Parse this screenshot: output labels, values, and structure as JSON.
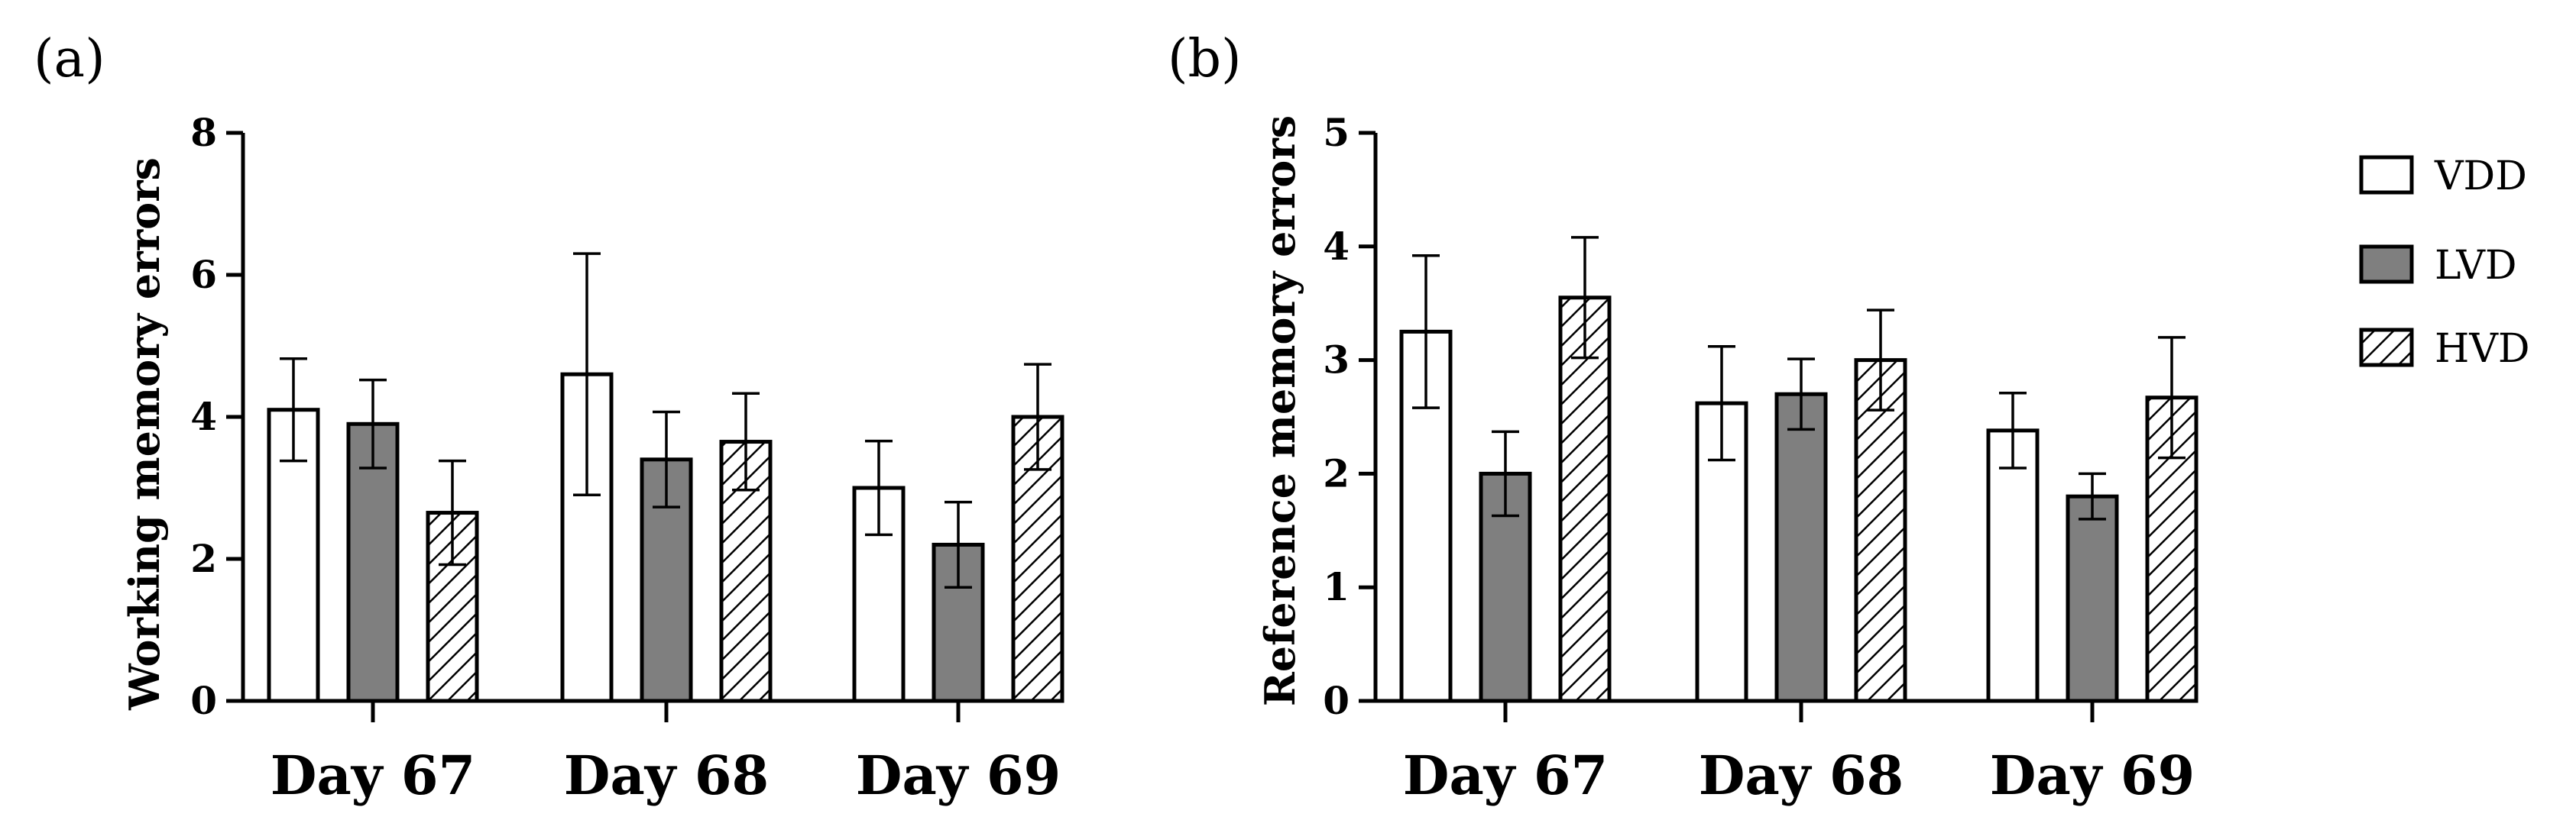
{
  "chart_data": [
    {
      "type": "bar",
      "panel_label": "(a)",
      "title": "",
      "xlabel": "",
      "ylabel": "Working memory errors",
      "ylim": [
        0,
        8
      ],
      "yticks": [
        "0",
        "2",
        "4",
        "6",
        "8"
      ],
      "categories": [
        "Day 67",
        "Day 68",
        "Day 69"
      ],
      "series": [
        {
          "name": "VDD",
          "values": [
            4.1,
            4.6,
            3.0
          ],
          "errors": [
            0.72,
            1.7,
            0.66
          ]
        },
        {
          "name": "LVD",
          "values": [
            3.9,
            3.4,
            2.2
          ],
          "errors": [
            0.62,
            0.67,
            0.6
          ]
        },
        {
          "name": "HVD",
          "values": [
            2.65,
            3.65,
            4.0
          ],
          "errors": [
            0.73,
            0.68,
            0.74
          ]
        }
      ]
    },
    {
      "type": "bar",
      "panel_label": "(b)",
      "title": "",
      "xlabel": "",
      "ylabel": "Reference memory errors",
      "ylim": [
        0,
        5
      ],
      "yticks": [
        "0",
        "1",
        "2",
        "3",
        "4",
        "5"
      ],
      "categories": [
        "Day 67",
        "Day 68",
        "Day 69"
      ],
      "series": [
        {
          "name": "VDD",
          "values": [
            3.25,
            2.62,
            2.38
          ],
          "errors": [
            0.67,
            0.5,
            0.33
          ]
        },
        {
          "name": "LVD",
          "values": [
            2.0,
            2.7,
            1.8
          ],
          "errors": [
            0.37,
            0.31,
            0.2
          ]
        },
        {
          "name": "HVD",
          "values": [
            3.55,
            3.0,
            2.67
          ],
          "errors": [
            0.53,
            0.44,
            0.53
          ]
        }
      ]
    }
  ],
  "legend": {
    "placement": "right",
    "items": [
      {
        "name": "VDD",
        "style": "white"
      },
      {
        "name": "LVD",
        "style": "gray"
      },
      {
        "name": "HVD",
        "style": "hatched"
      }
    ]
  },
  "colors": {
    "VDD": "#ffffff",
    "LVD": "#7f7f7f",
    "HVD_hatch": "#000000",
    "axis": "#000000"
  }
}
